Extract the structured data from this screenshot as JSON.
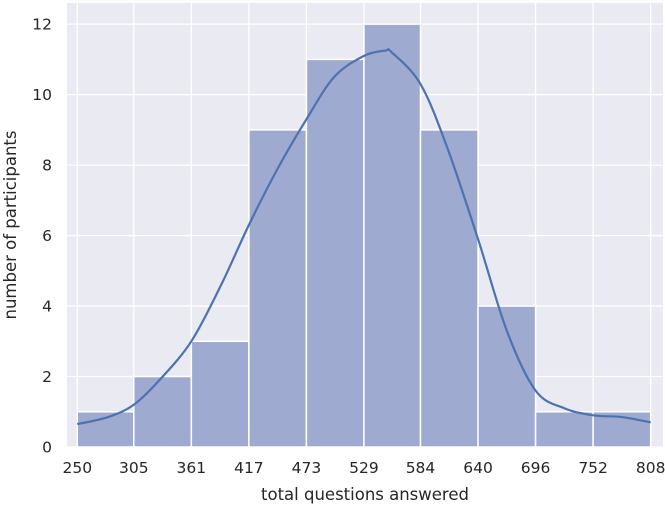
{
  "chart_data": {
    "type": "bar",
    "title": "",
    "xlabel": "total questions answered",
    "ylabel": "number of participants",
    "bin_edges": [
      250,
      305,
      361,
      417,
      473,
      529,
      584,
      640,
      696,
      752,
      808
    ],
    "x_tick_labels": [
      "250",
      "305",
      "361",
      "417",
      "473",
      "529",
      "584",
      "640",
      "696",
      "752",
      "808"
    ],
    "values": [
      1,
      2,
      3,
      9,
      11,
      12,
      9,
      4,
      1,
      1
    ],
    "y_ticks": [
      0,
      2,
      4,
      6,
      8,
      10,
      12
    ],
    "y_tick_labels": [
      "0",
      "2",
      "4",
      "6",
      "8",
      "10",
      "12"
    ],
    "xlim": [
      240,
      820
    ],
    "ylim": [
      0,
      12.6
    ],
    "grid": true,
    "kde": {
      "x": [
        250,
        280,
        305,
        330,
        361,
        390,
        417,
        445,
        473,
        500,
        529,
        550,
        556,
        584,
        610,
        640,
        668,
        696,
        724,
        752,
        780,
        808
      ],
      "y": [
        0.65,
        0.85,
        1.2,
        1.9,
        3.0,
        4.6,
        6.3,
        7.9,
        9.3,
        10.5,
        11.1,
        11.25,
        11.2,
        10.3,
        8.5,
        5.9,
        3.3,
        1.6,
        1.1,
        0.9,
        0.85,
        0.7
      ]
    },
    "colors": {
      "bar_fill": "#9eaad0",
      "bar_edge": "#ffffff",
      "kde_line": "#4c72b0",
      "plot_background": "#eaeaf2",
      "grid": "#ffffff"
    }
  }
}
